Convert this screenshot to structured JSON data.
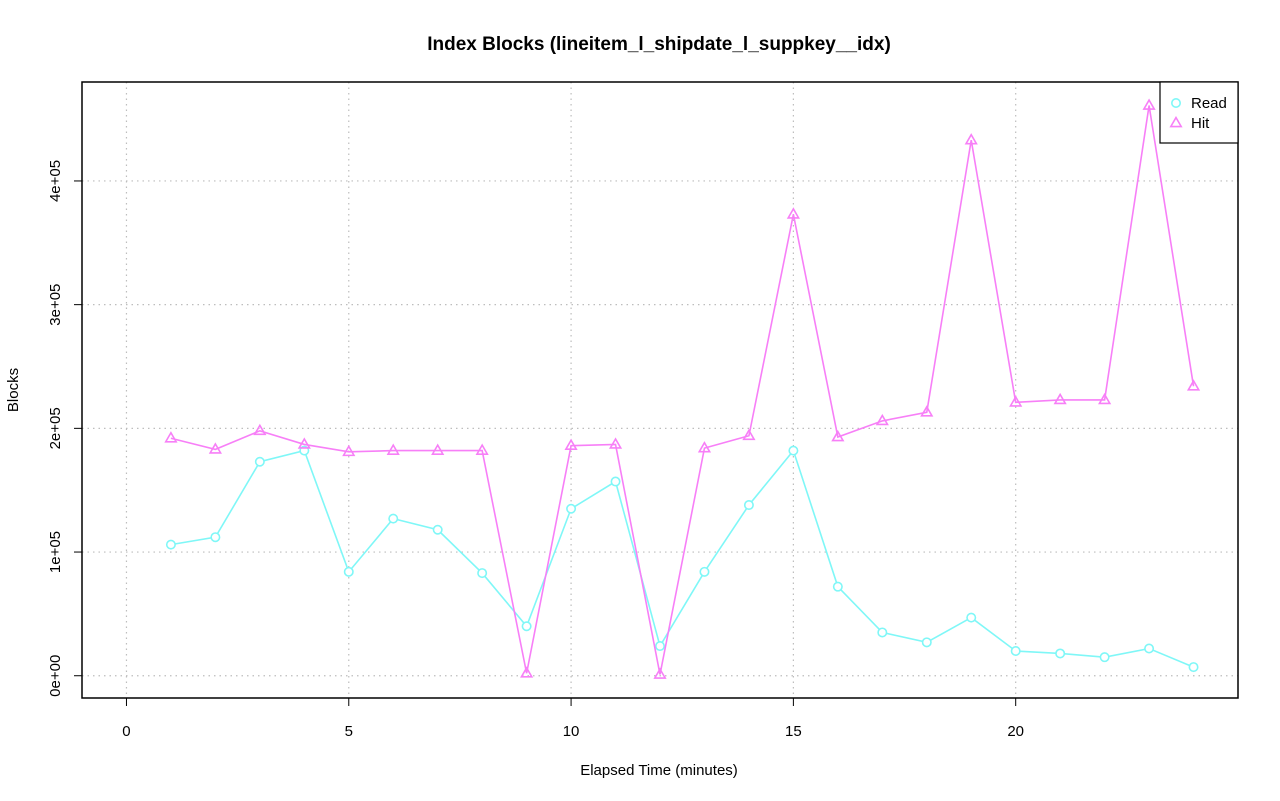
{
  "chart_data": {
    "type": "line",
    "title": "Index Blocks (lineitem_l_shipdate_l_suppkey__idx)",
    "xlabel": "Elapsed Time (minutes)",
    "ylabel": "Blocks",
    "xlim": [
      -1,
      25
    ],
    "ylim": [
      -18000,
      480000
    ],
    "x_ticks": [
      0,
      5,
      10,
      15,
      20
    ],
    "x_tick_labels": [
      "0",
      "5",
      "10",
      "15",
      "20"
    ],
    "y_ticks": [
      0,
      100000,
      200000,
      300000,
      400000
    ],
    "y_tick_labels": [
      "0e+00",
      "1e+05",
      "2e+05",
      "3e+05",
      "4e+05"
    ],
    "grid": true,
    "legend_position": "top-right",
    "x": [
      1,
      2,
      3,
      4,
      5,
      6,
      7,
      8,
      9,
      10,
      11,
      12,
      13,
      14,
      15,
      16,
      17,
      18,
      19,
      20,
      21,
      22,
      23,
      24
    ],
    "series": [
      {
        "name": "Read",
        "color": "#7ff7f7",
        "marker": "circle",
        "values": [
          106000,
          112000,
          173000,
          182000,
          84000,
          127000,
          118000,
          83000,
          40000,
          135000,
          157000,
          24000,
          84000,
          138000,
          182000,
          72000,
          35000,
          27000,
          47000,
          20000,
          18000,
          15000,
          22000,
          7000
        ]
      },
      {
        "name": "Hit",
        "color": "#f77ff7",
        "marker": "triangle",
        "values": [
          192000,
          183000,
          198000,
          187000,
          181000,
          182000,
          182000,
          182000,
          2000,
          186000,
          187000,
          1000,
          184000,
          194000,
          373000,
          193000,
          206000,
          213000,
          433000,
          221000,
          223000,
          223000,
          461000,
          234000
        ]
      }
    ]
  }
}
